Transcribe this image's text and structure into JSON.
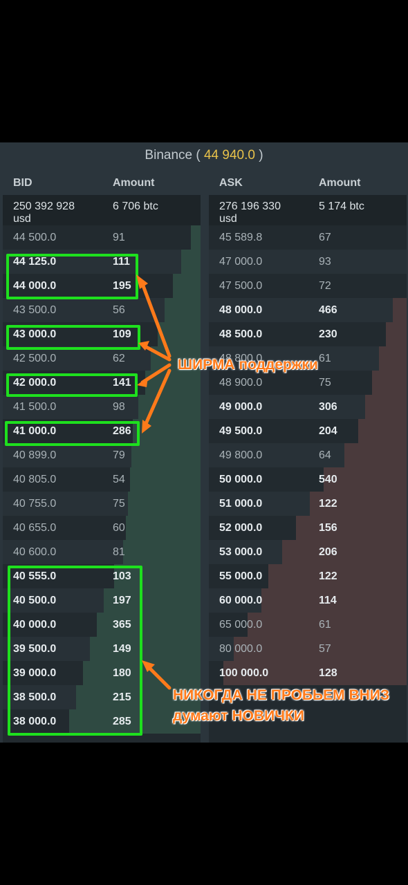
{
  "header": {
    "exchange": "Binance",
    "price": "44 940.0",
    "open": "(",
    "close": ")"
  },
  "bid": {
    "col_price": "BID",
    "col_amount": "Amount",
    "total_usd": "250 392 928\nusd",
    "total_btc": "6 706 btc",
    "rows": [
      {
        "price": "44 500.0",
        "amount": "91"
      },
      {
        "price": "44 125.0",
        "amount": "111"
      },
      {
        "price": "44 000.0",
        "amount": "195"
      },
      {
        "price": "43 500.0",
        "amount": "56"
      },
      {
        "price": "43 000.0",
        "amount": "109"
      },
      {
        "price": "42 500.0",
        "amount": "62"
      },
      {
        "price": "42 000.0",
        "amount": "141"
      },
      {
        "price": "41 500.0",
        "amount": "98"
      },
      {
        "price": "41 000.0",
        "amount": "286"
      },
      {
        "price": "40 899.0",
        "amount": "79"
      },
      {
        "price": "40 805.0",
        "amount": "54"
      },
      {
        "price": "40 755.0",
        "amount": "75"
      },
      {
        "price": "40 655.0",
        "amount": "60"
      },
      {
        "price": "40 600.0",
        "amount": "81"
      },
      {
        "price": "40 555.0",
        "amount": "103"
      },
      {
        "price": "40 500.0",
        "amount": "197"
      },
      {
        "price": "40 000.0",
        "amount": "365"
      },
      {
        "price": "39 500.0",
        "amount": "149"
      },
      {
        "price": "39 000.0",
        "amount": "180"
      },
      {
        "price": "38 500.0",
        "amount": "215"
      },
      {
        "price": "38 000.0",
        "amount": "285"
      }
    ]
  },
  "ask": {
    "col_price": "ASK",
    "col_amount": "Amount",
    "total_usd": "276 196 330\nusd",
    "total_btc": "5 174 btc",
    "rows": [
      {
        "price": "45 589.8",
        "amount": "67"
      },
      {
        "price": "47 000.0",
        "amount": "93"
      },
      {
        "price": "47 500.0",
        "amount": "72"
      },
      {
        "price": "48 000.0",
        "amount": "466"
      },
      {
        "price": "48 500.0",
        "amount": "230"
      },
      {
        "price": "48 800.0",
        "amount": "61"
      },
      {
        "price": "48 900.0",
        "amount": "75"
      },
      {
        "price": "49 000.0",
        "amount": "306"
      },
      {
        "price": "49 500.0",
        "amount": "204"
      },
      {
        "price": "49 800.0",
        "amount": "64"
      },
      {
        "price": "50 000.0",
        "amount": "540"
      },
      {
        "price": "51 000.0",
        "amount": "122"
      },
      {
        "price": "52 000.0",
        "amount": "156"
      },
      {
        "price": "53 000.0",
        "amount": "206"
      },
      {
        "price": "55 000.0",
        "amount": "122"
      },
      {
        "price": "60 000.0",
        "amount": "114"
      },
      {
        "price": "65 000.0",
        "amount": "61"
      },
      {
        "price": "80 000.0",
        "amount": "57"
      },
      {
        "price": "100 000.0",
        "amount": "128"
      }
    ]
  },
  "annotations": {
    "support": "ШИРМА поддержки",
    "never_1": "НИКОГДА НЕ ПРОБЬЕМ ВНИЗ",
    "never_2": "думают НОВИЧКИ",
    "box_color": "#1ee01e",
    "arrow_color": "#ff7a1a"
  }
}
